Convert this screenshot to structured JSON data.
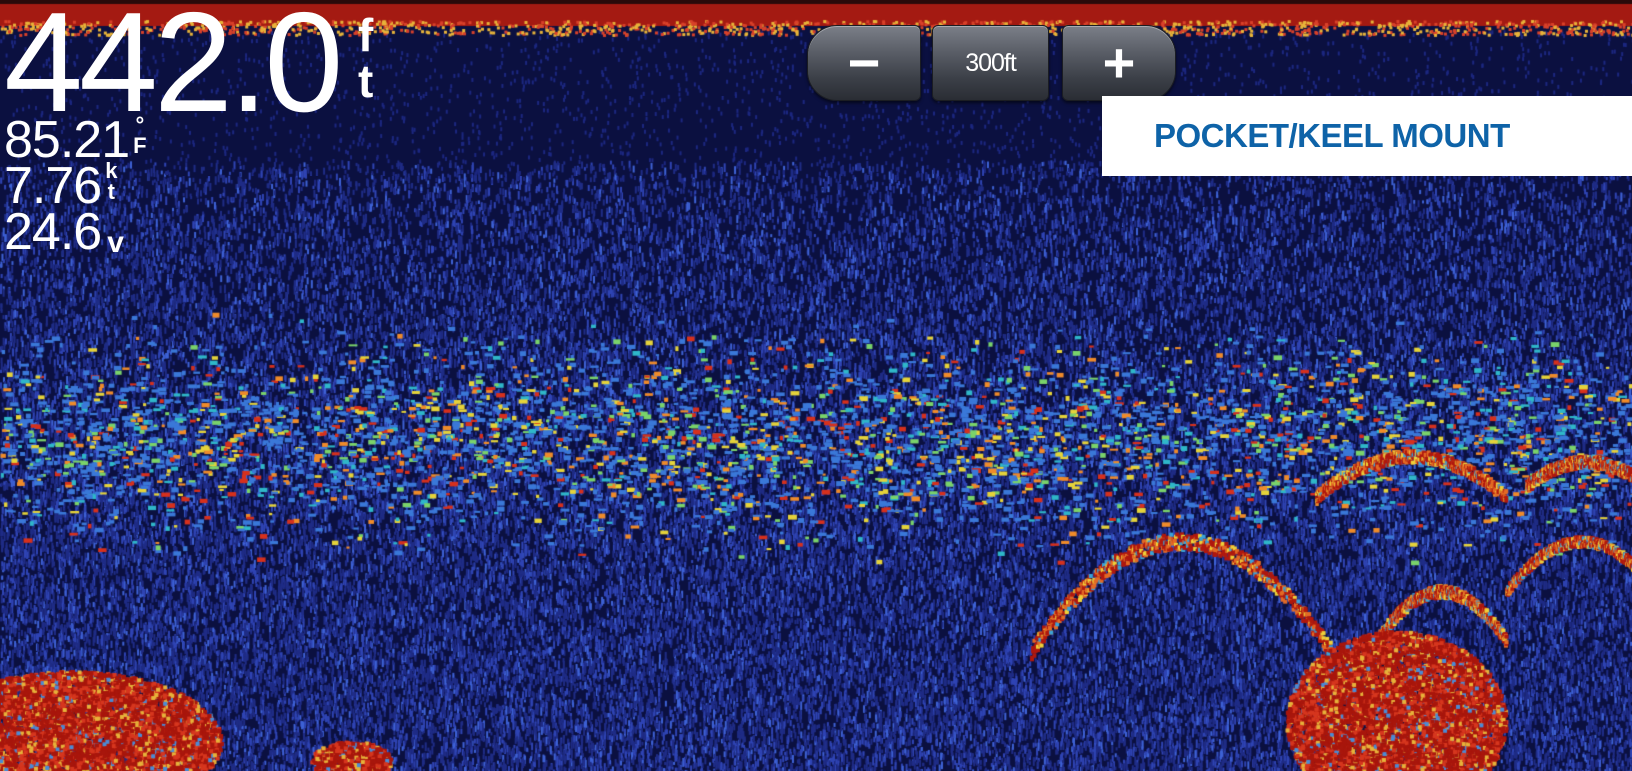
{
  "readouts": {
    "depth": {
      "value": "442.0",
      "unit_top": "f",
      "unit_bottom": "t"
    },
    "water_temp": {
      "value": "85.21",
      "unit_top": "°",
      "unit_bottom": "F"
    },
    "speed": {
      "value": "7.76",
      "unit_top": "k",
      "unit_bottom": "t"
    },
    "voltage": {
      "value": "24.6",
      "unit": "v"
    }
  },
  "zoom": {
    "minus_icon": "minus-icon",
    "minus_label": "−",
    "range_label": "300ft",
    "plus_icon": "plus-icon",
    "plus_label": "+"
  },
  "mount_label": "POCKET/KEEL MOUNT",
  "colors": {
    "background": "#0b1040",
    "noise": "#2a3aa0",
    "surface_band": "#a41a12",
    "strong_return": "#b0180e",
    "mount_text": "#0e63a8"
  }
}
